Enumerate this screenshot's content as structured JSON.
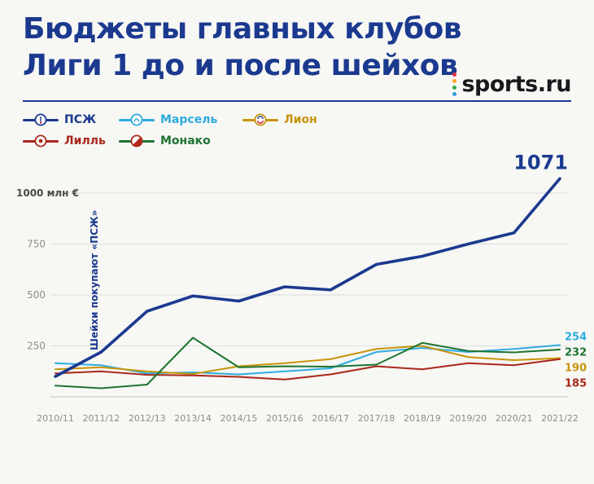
{
  "header": {
    "title_line1": "Бюджеты главных клубов",
    "title_line2": "Лиги 1 до и после шейхов",
    "logo": {
      "text": "sports.ru",
      "dot_colors": [
        "#e5304c",
        "#f7a823",
        "#2faa4a",
        "#2f9fe0"
      ]
    }
  },
  "legend": {
    "items": [
      {
        "label": "ПСЖ",
        "color": "#1b3a8f"
      },
      {
        "label": "Марсель",
        "color": "#2fabdf"
      },
      {
        "label": "Лион",
        "color": "#c7950b"
      },
      {
        "label": "Лилль",
        "color": "#a8281a"
      },
      {
        "label": "Монако",
        "color": "#1e7433"
      }
    ]
  },
  "chart_data": {
    "type": "line",
    "title": "Бюджеты главных клубов Лиги 1 до и после шейхов",
    "ylabel": "1000 млн €",
    "yticks": [
      250,
      500,
      750,
      1000
    ],
    "ylim": [
      0,
      1150
    ],
    "grid": "horizontal",
    "legend_position": "top",
    "annotation": "Шейхи покупают «ПСЖ»",
    "categories": [
      "2010/11",
      "2011/12",
      "2012/13",
      "2013/14",
      "2014/15",
      "2015/16",
      "2016/17",
      "2017/18",
      "2018/19",
      "2019/20",
      "2020/21",
      "2021/22"
    ],
    "series": [
      {
        "name": "Марсель",
        "color": "#2fabdf",
        "values": [
          165,
          155,
          115,
          120,
          110,
          125,
          140,
          220,
          240,
          220,
          235,
          254
        ],
        "end_label": "254"
      },
      {
        "name": "Лион",
        "color": "#c7950b",
        "values": [
          135,
          145,
          125,
          112,
          150,
          165,
          185,
          235,
          250,
          195,
          180,
          190
        ],
        "end_label": "190"
      },
      {
        "name": "Лилль",
        "color": "#a8281a",
        "values": [
          115,
          125,
          108,
          105,
          98,
          85,
          110,
          150,
          135,
          165,
          155,
          185
        ],
        "end_label": "185"
      },
      {
        "name": "Монако",
        "color": "#1e7433",
        "values": [
          55,
          42,
          60,
          290,
          145,
          150,
          148,
          158,
          265,
          225,
          218,
          232
        ],
        "end_label": "232"
      },
      {
        "name": "ПСЖ",
        "color": "#1b3a8f",
        "values": [
          100,
          220,
          420,
          495,
          470,
          540,
          525,
          650,
          690,
          750,
          805,
          1071
        ],
        "end_label": "1071",
        "emphasis": true
      }
    ]
  }
}
